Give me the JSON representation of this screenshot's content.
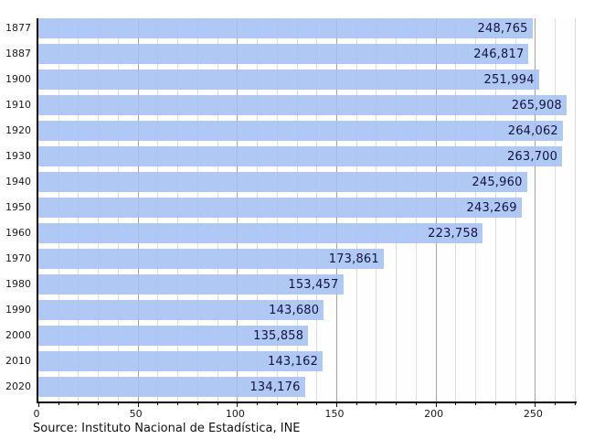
{
  "chart_data": {
    "type": "bar",
    "orientation": "horizontal",
    "title": "",
    "xlabel": "",
    "ylabel": "",
    "categories": [
      "1877",
      "1887",
      "1900",
      "1910",
      "1920",
      "1930",
      "1940",
      "1950",
      "1960",
      "1970",
      "1980",
      "1990",
      "2000",
      "2010",
      "2020"
    ],
    "values": [
      248765,
      246817,
      251994,
      265908,
      264062,
      263700,
      245960,
      243269,
      223758,
      173861,
      153457,
      143680,
      135858,
      143162,
      134176
    ],
    "value_labels": [
      "248,765",
      "246,817",
      "251,994",
      "265,908",
      "264,062",
      "263,700",
      "245,960",
      "243,269",
      "223,758",
      "173,861",
      "153,457",
      "143,680",
      "135,858",
      "143,162",
      "134,176"
    ],
    "x_tick_labels": [
      "0",
      "50",
      "100",
      "150",
      "200",
      "250"
    ],
    "x_ticks": [
      0,
      50,
      100,
      150,
      200,
      250
    ],
    "x_minor_step": 10,
    "xlim": [
      0,
      271
    ],
    "axis_unit_divisor": 1000,
    "grid": "on",
    "legend": "none",
    "source": "Source: Instituto Nacional de Estadística, INE",
    "colors": {
      "bar": "#a4c2f2",
      "bar_value_text": "#14143c",
      "axis": "#000000",
      "grid_minor": "#d9e0d9",
      "grid_major": "#a3a3a3",
      "background": "#ffffff",
      "text": "#1a1a1a"
    }
  }
}
